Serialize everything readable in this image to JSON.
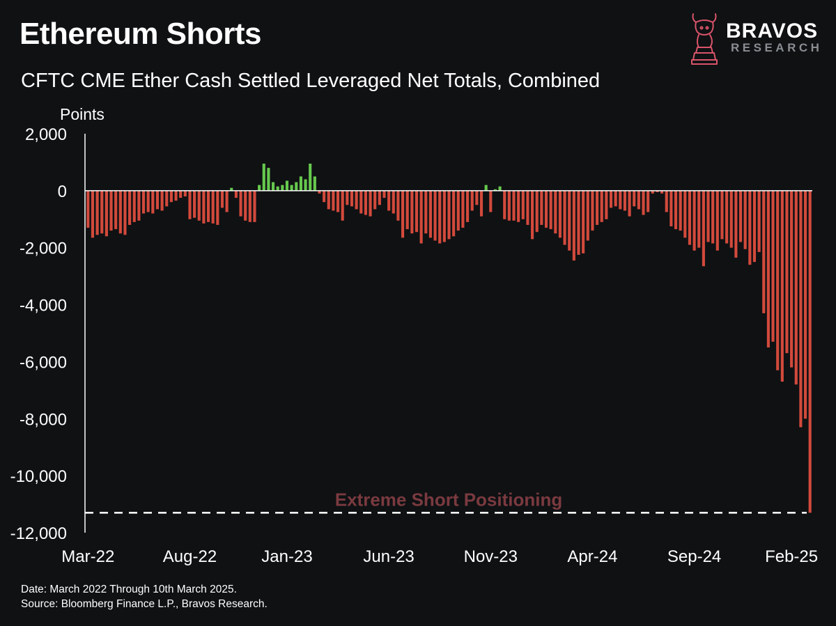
{
  "header": {
    "title": "Ethereum Shorts",
    "subtitle": "CFTC CME Ether Cash Settled Leveraged Net Totals, Combined"
  },
  "brand": {
    "name": "BRAVOS",
    "sub": "RESEARCH",
    "accent": "#d9546a",
    "logo_icon": "knight-bull-icon"
  },
  "footer": {
    "line1": "Date: March 2022 Through 10th March 2025.",
    "line2": "Source: Bloomberg Finance L.P., Bravos Research."
  },
  "colors": {
    "background": "#0f1113",
    "positive": "#66c94e",
    "negative": "#d24a3c",
    "annotation": "#7a3a3f",
    "axis": "#ffffff"
  },
  "chart_data": {
    "type": "bar",
    "title": "CFTC CME Ether Cash Settled Leveraged Net Totals, Combined",
    "ylabel": "Points",
    "ylim": [
      -12000,
      2000
    ],
    "yticks": [
      "2,000",
      "0",
      "-2,000",
      "-4,000",
      "-6,000",
      "-8,000",
      "-10,000",
      "-12,000"
    ],
    "ytick_values": [
      2000,
      0,
      -2000,
      -4000,
      -6000,
      -8000,
      -10000,
      -12000
    ],
    "xticks": [
      "Mar-22",
      "Aug-22",
      "Jan-23",
      "Jun-23",
      "Nov-23",
      "Apr-24",
      "Sep-24",
      "Feb-25"
    ],
    "xtick_index": [
      0,
      22,
      43,
      65,
      87,
      109,
      131,
      152
    ],
    "grid": false,
    "legend": "none",
    "annotation": {
      "text": "Extreme Short Positioning",
      "y": -11300
    },
    "values": [
      -1300,
      -1650,
      -1550,
      -1500,
      -1600,
      -1400,
      -1350,
      -1500,
      -1550,
      -1200,
      -1100,
      -1050,
      -800,
      -750,
      -800,
      -650,
      -700,
      -550,
      -400,
      -350,
      -250,
      -200,
      -1000,
      -950,
      -1050,
      -1150,
      -1100,
      -1150,
      -1200,
      -600,
      -750,
      100,
      -250,
      -900,
      -1050,
      -1100,
      -1100,
      200,
      950,
      800,
      300,
      150,
      200,
      350,
      200,
      300,
      500,
      400,
      950,
      500,
      -100,
      -400,
      -650,
      -700,
      -750,
      -1050,
      -500,
      -550,
      -650,
      -800,
      -850,
      -900,
      -650,
      -500,
      -250,
      -700,
      -800,
      -1050,
      -1650,
      -1350,
      -1500,
      -1450,
      -1850,
      -1500,
      -1650,
      -1750,
      -1850,
      -1800,
      -1700,
      -1600,
      -1400,
      -1300,
      -1100,
      -700,
      -500,
      -900,
      200,
      -750,
      50,
      150,
      -1000,
      -1050,
      -1050,
      -1100,
      -1000,
      -1200,
      -1700,
      -1450,
      -1200,
      -1300,
      -1350,
      -1500,
      -1650,
      -1900,
      -2100,
      -2450,
      -2250,
      -2200,
      -1750,
      -1400,
      -1200,
      -1100,
      -1000,
      -600,
      -550,
      -650,
      -700,
      -900,
      -550,
      -650,
      -850,
      -750,
      -100,
      -50,
      -100,
      -750,
      -1250,
      -1350,
      -1400,
      -1650,
      -1900,
      -2100,
      -2000,
      -2650,
      -1800,
      -1850,
      -2100,
      -1700,
      -1850,
      -2000,
      -2350,
      -1800,
      -2050,
      -2600,
      -2500,
      -2150,
      -4300,
      -5500,
      -5300,
      -6300,
      -6700,
      -5700,
      -6200,
      -6800,
      -8300,
      -8000,
      -11300
    ]
  }
}
